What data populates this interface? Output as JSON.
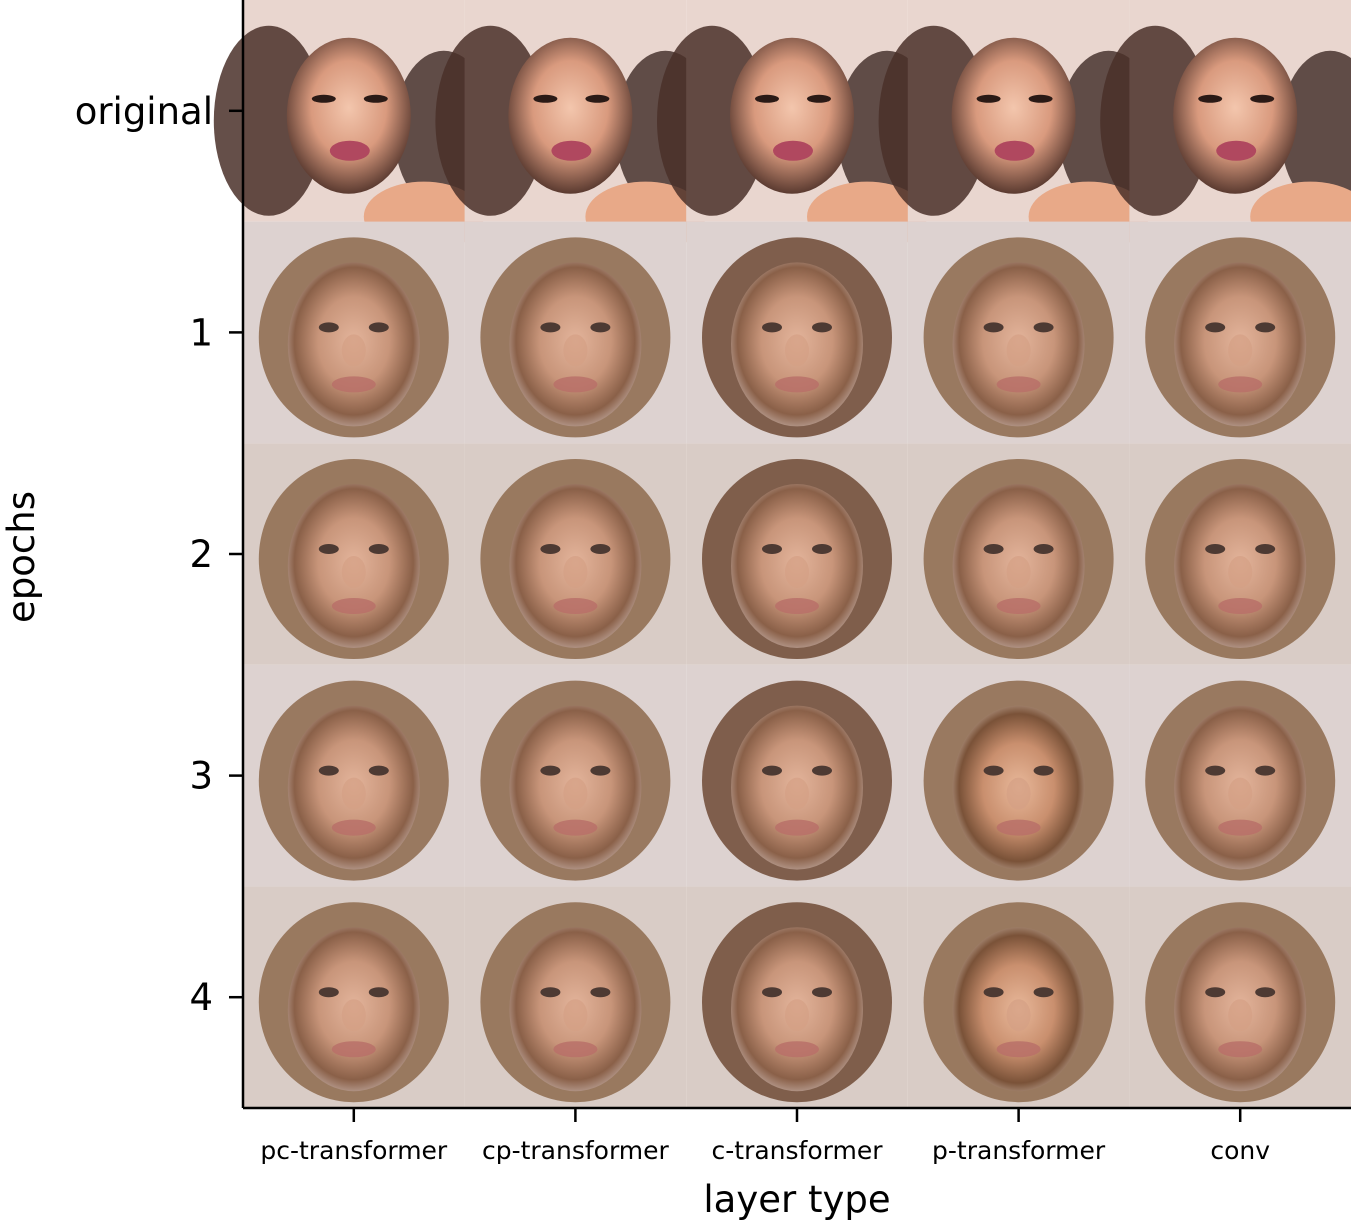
{
  "chart_data": {
    "type": "image-grid",
    "title": "",
    "xlabel": "layer type",
    "ylabel": "epochs",
    "columns": [
      "pc-transformer",
      "cp-transformer",
      "c-transformer",
      "p-transformer",
      "conv"
    ],
    "rows": [
      "original",
      "1",
      "2",
      "3",
      "4"
    ],
    "grid": false
  }
}
